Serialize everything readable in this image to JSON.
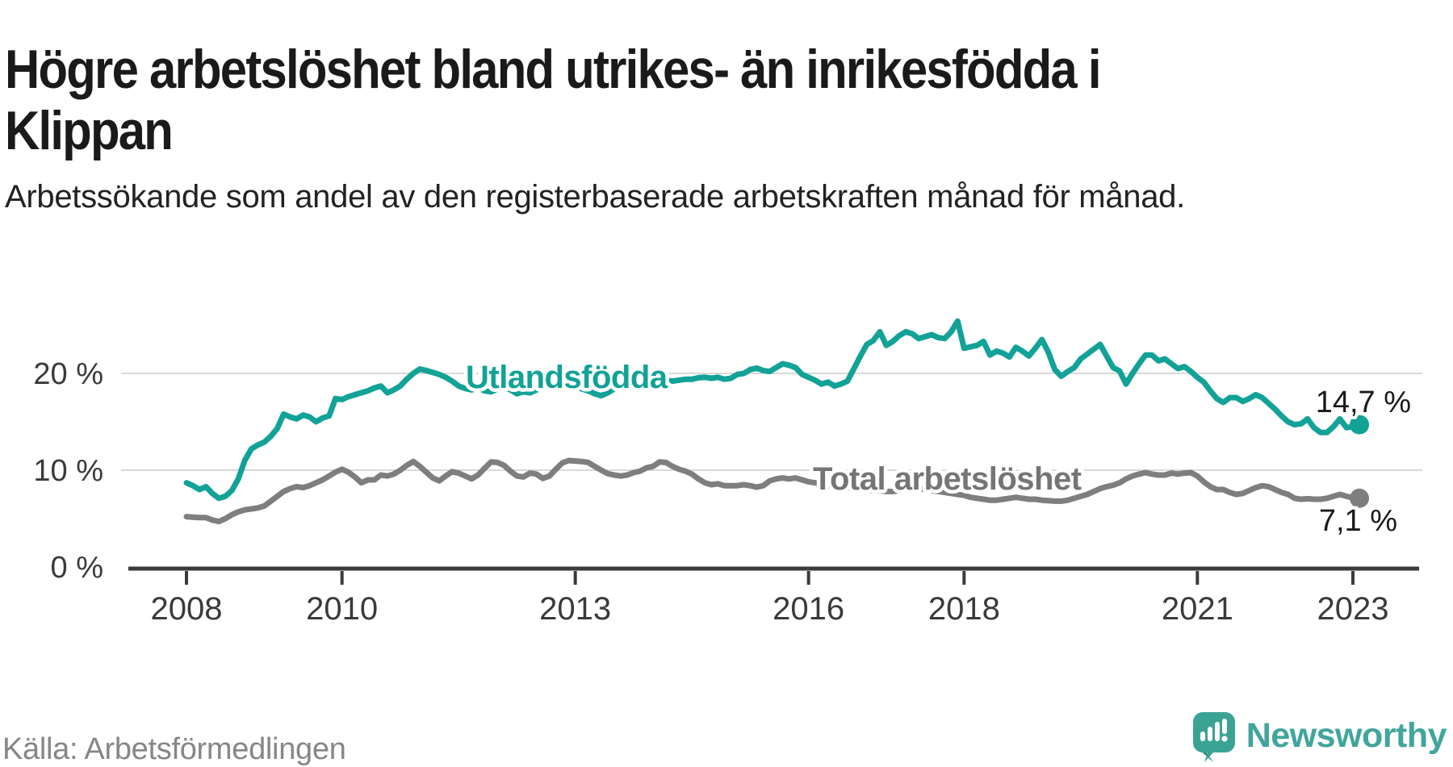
{
  "header": {
    "title": "Högre arbetslöshet bland utrikes- än inrikesfödda i Klippan",
    "subtitle": "Arbetssökande som andel av den registerbaserade arbetskraften månad för månad."
  },
  "source": "Källa: Arbetsförmedlingen",
  "branding": {
    "name": "Newsworthy",
    "logo_icon": "bar-chart-speech-bubble-icon",
    "teal": "#3ba394",
    "teal_dark": "#2e8c82",
    "wordmark_color": "#41a59b"
  },
  "colors": {
    "series_foreign_born": "#12a297",
    "series_total": "#7e7e7e",
    "axis": "#3b3b3b",
    "gridline": "#d9d9d9",
    "tick_label": "#3a3a3a",
    "end_label": "#1a1a1a"
  },
  "chart_data": {
    "type": "line",
    "x_start": "2008-01",
    "x_end": "2023-02",
    "x_unit": "month",
    "grid": "horizontal-only",
    "ylim": [
      0,
      27
    ],
    "y_ticks": [
      {
        "value": 0,
        "label": "0 %"
      },
      {
        "value": 10,
        "label": "10 %"
      },
      {
        "value": 20,
        "label": "20 %"
      }
    ],
    "x_ticks": [
      {
        "label": "2008",
        "month_index": 0
      },
      {
        "label": "2010",
        "month_index": 24
      },
      {
        "label": "2013",
        "month_index": 60
      },
      {
        "label": "2016",
        "month_index": 96
      },
      {
        "label": "2018",
        "month_index": 120
      },
      {
        "label": "2021",
        "month_index": 156
      },
      {
        "label": "2023",
        "month_index": 180
      }
    ],
    "series": [
      {
        "name": "Utlandsfödda",
        "color": "#12a297",
        "end_value": 14.7,
        "end_label": "14,7 %",
        "values": [
          8.7,
          8.4,
          8.0,
          8.3,
          7.6,
          7.1,
          7.3,
          7.9,
          9.1,
          11.0,
          12.2,
          12.6,
          12.9,
          13.5,
          14.3,
          15.8,
          15.5,
          15.3,
          15.7,
          15.5,
          15.0,
          15.4,
          15.6,
          17.4,
          17.3,
          17.6,
          17.8,
          18.0,
          18.2,
          18.5,
          18.7,
          18.0,
          18.3,
          18.7,
          19.4,
          20.0,
          20.45,
          20.3,
          20.1,
          19.9,
          19.6,
          19.2,
          18.7,
          18.45,
          18.3,
          18.5,
          18.2,
          18.1,
          18.4,
          18.6,
          18.3,
          17.9,
          18.1,
          18.0,
          18.3,
          18.6,
          18.9,
          19.2,
          19.0,
          18.8,
          18.6,
          18.4,
          18.2,
          17.9,
          17.7,
          18.0,
          18.4,
          18.8,
          19.1,
          19.3,
          19.2,
          19.3,
          19.4,
          19.5,
          19.3,
          19.2,
          19.3,
          19.4,
          19.4,
          19.55,
          19.6,
          19.5,
          19.6,
          19.4,
          19.5,
          19.9,
          20.0,
          20.4,
          20.55,
          20.3,
          20.2,
          20.6,
          21.0,
          20.85,
          20.6,
          19.9,
          19.6,
          19.3,
          18.9,
          19.1,
          18.7,
          18.9,
          19.2,
          20.5,
          21.8,
          23.0,
          23.4,
          24.3,
          22.9,
          23.3,
          23.9,
          24.3,
          24.1,
          23.6,
          23.8,
          24.0,
          23.7,
          23.6,
          24.3,
          25.4,
          22.6,
          22.75,
          22.9,
          23.3,
          21.9,
          22.3,
          22.1,
          21.7,
          22.7,
          22.3,
          21.8,
          22.6,
          23.5,
          22.2,
          20.4,
          19.7,
          20.2,
          20.6,
          21.5,
          22.0,
          22.5,
          23.0,
          21.8,
          20.6,
          20.25,
          18.9,
          20.0,
          21.0,
          21.9,
          21.9,
          21.3,
          21.5,
          21.0,
          20.5,
          20.7,
          20.2,
          19.6,
          19.1,
          18.2,
          17.4,
          17.0,
          17.5,
          17.5,
          17.1,
          17.4,
          17.8,
          17.5,
          16.9,
          16.3,
          15.6,
          15.0,
          14.7,
          14.8,
          15.3,
          14.4,
          13.9,
          13.9,
          14.5,
          15.3,
          14.4,
          14.5,
          14.7
        ]
      },
      {
        "name": "Total arbetslöshet",
        "color": "#7e7e7e",
        "end_value": 7.1,
        "end_label": "7,1 %",
        "values": [
          5.2,
          5.15,
          5.1,
          5.1,
          4.85,
          4.7,
          5.0,
          5.4,
          5.7,
          5.9,
          6.0,
          6.1,
          6.3,
          6.8,
          7.3,
          7.8,
          8.1,
          8.3,
          8.2,
          8.4,
          8.7,
          9.0,
          9.4,
          9.8,
          10.1,
          9.8,
          9.3,
          8.7,
          9.0,
          9.0,
          9.5,
          9.4,
          9.6,
          10.0,
          10.5,
          10.9,
          10.4,
          9.8,
          9.2,
          8.9,
          9.4,
          9.85,
          9.7,
          9.4,
          9.1,
          9.5,
          10.2,
          10.85,
          10.8,
          10.5,
          9.9,
          9.4,
          9.3,
          9.7,
          9.6,
          9.15,
          9.4,
          10.1,
          10.75,
          11.0,
          10.95,
          10.9,
          10.8,
          10.4,
          10.0,
          9.65,
          9.5,
          9.4,
          9.5,
          9.75,
          9.9,
          10.25,
          10.4,
          10.85,
          10.8,
          10.4,
          10.1,
          9.9,
          9.6,
          9.1,
          8.7,
          8.5,
          8.6,
          8.4,
          8.4,
          8.4,
          8.5,
          8.4,
          8.25,
          8.4,
          8.9,
          9.1,
          9.2,
          9.1,
          9.2,
          9.0,
          8.8,
          8.7,
          8.6,
          8.4,
          8.4,
          8.3,
          8.2,
          8.1,
          8.1,
          8.0,
          7.9,
          7.9,
          7.8,
          7.8,
          7.9,
          8.0,
          8.1,
          8.1,
          8.0,
          7.9,
          7.8,
          7.7,
          7.6,
          7.5,
          7.4,
          7.2,
          7.1,
          7.0,
          6.9,
          6.9,
          7.0,
          7.1,
          7.2,
          7.1,
          7.0,
          7.0,
          6.9,
          6.85,
          6.8,
          6.8,
          6.9,
          7.1,
          7.3,
          7.5,
          7.8,
          8.1,
          8.3,
          8.45,
          8.7,
          9.1,
          9.4,
          9.6,
          9.75,
          9.6,
          9.5,
          9.5,
          9.7,
          9.6,
          9.7,
          9.75,
          9.4,
          8.8,
          8.3,
          8.0,
          8.0,
          7.7,
          7.5,
          7.6,
          7.9,
          8.2,
          8.4,
          8.3,
          8.0,
          7.7,
          7.5,
          7.1,
          7.0,
          7.05,
          7.0,
          7.0,
          7.1,
          7.3,
          7.5,
          7.3,
          7.15,
          7.1
        ]
      }
    ],
    "annotations": [
      {
        "text": "Utlandsfödda",
        "color": "#12a297"
      },
      {
        "text": "Total arbetslöshet",
        "color": "#757575"
      }
    ]
  }
}
